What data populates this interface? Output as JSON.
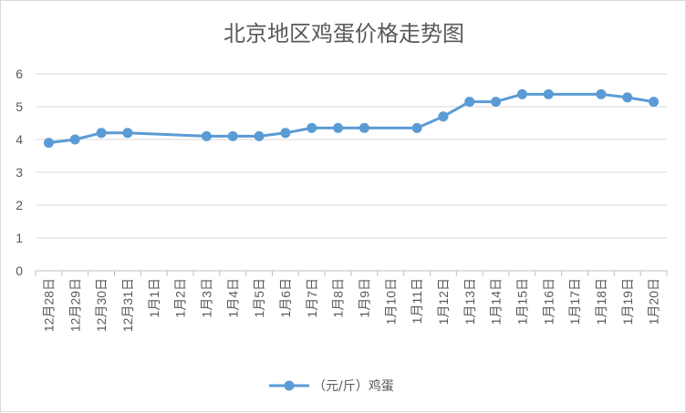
{
  "chart_data": {
    "type": "line",
    "title": "北京地区鸡蛋价格走势图",
    "xlabel": "",
    "ylabel": "",
    "ylim": [
      0,
      6
    ],
    "yticks": [
      "0",
      "1",
      "2",
      "3",
      "4",
      "5",
      "6"
    ],
    "grid": true,
    "legend_position": "bottom",
    "color": "#5B9BD5",
    "categories": [
      "12月28日",
      "12月29日",
      "12月30日",
      "12月31日",
      "1月1日",
      "1月2日",
      "1月3日",
      "1月4日",
      "1月5日",
      "1月6日",
      "1月7日",
      "1月8日",
      "1月9日",
      "1月10日",
      "1月11日",
      "1月12日",
      "1月13日",
      "1月14日",
      "1月15日",
      "1月16日",
      "1月17日",
      "1月18日",
      "1月19日",
      "1月20日"
    ],
    "series": [
      {
        "name": "（元/斤）鸡蛋",
        "values": [
          3.9,
          4.0,
          4.2,
          4.2,
          null,
          null,
          4.1,
          4.1,
          4.1,
          4.2,
          4.35,
          4.35,
          4.35,
          null,
          4.35,
          4.7,
          5.15,
          5.15,
          5.38,
          5.38,
          null,
          5.38,
          5.28,
          5.15
        ]
      }
    ]
  }
}
